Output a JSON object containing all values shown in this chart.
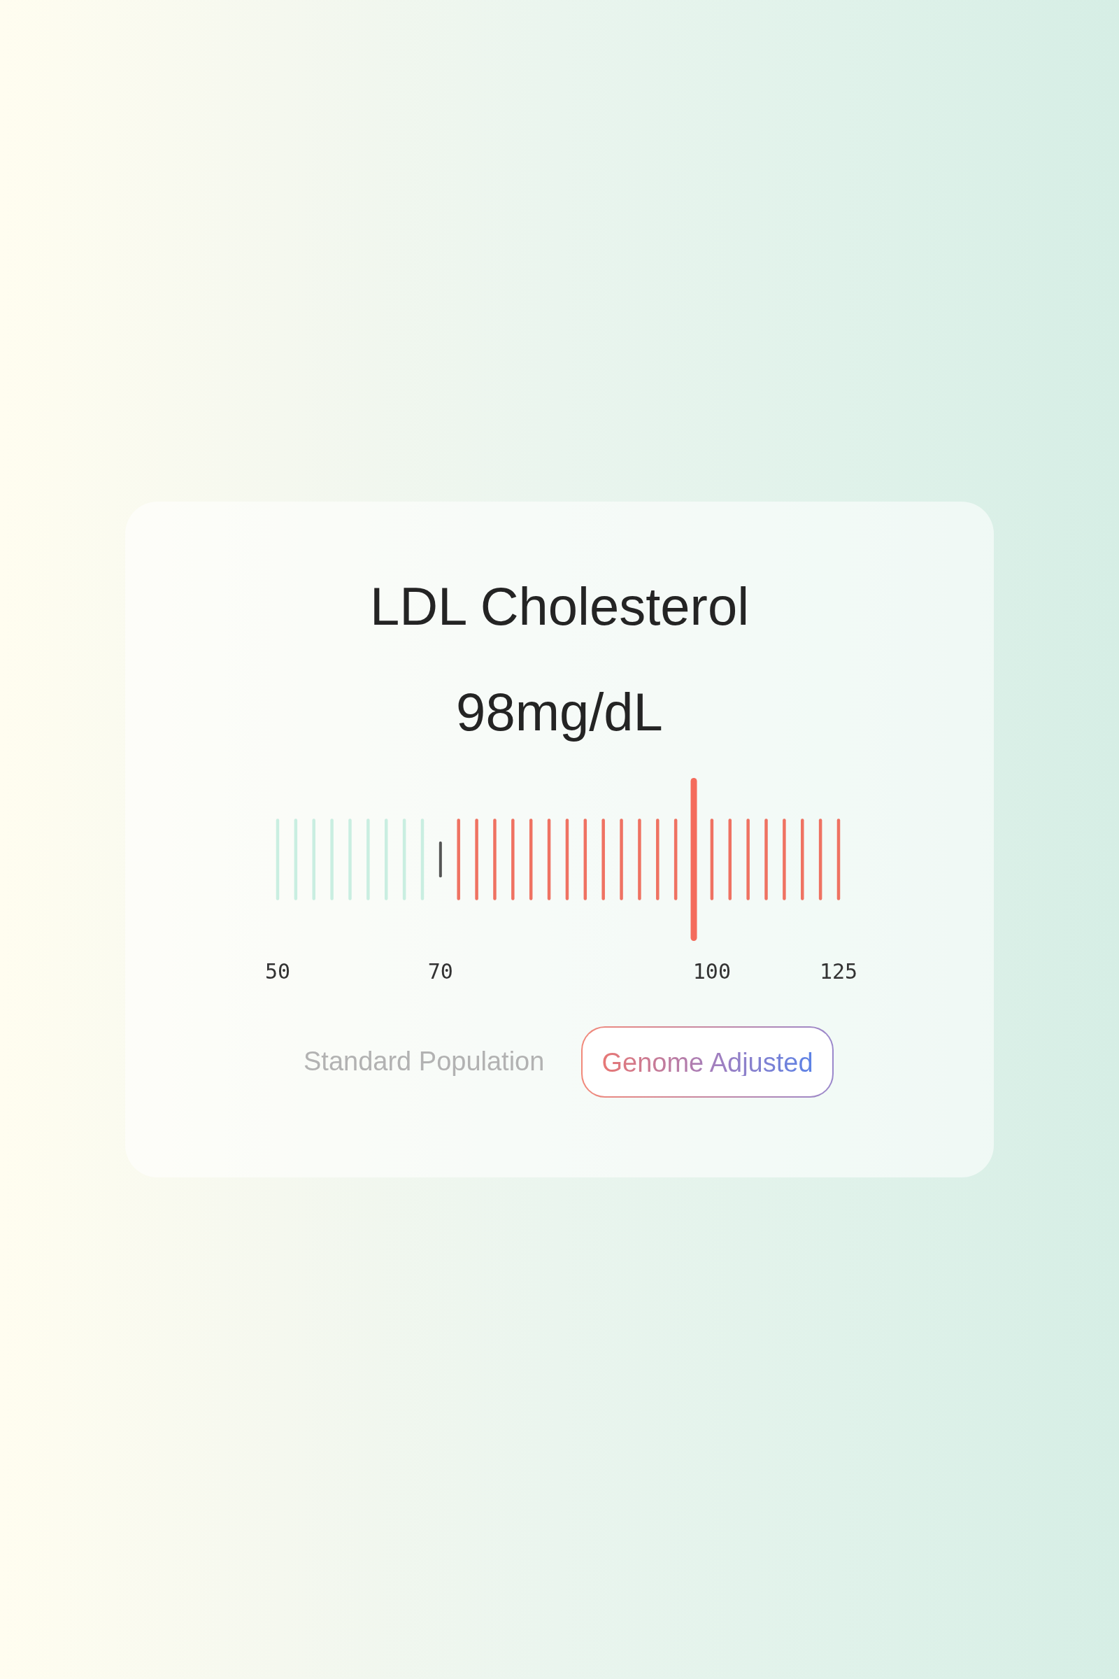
{
  "chart_data": {
    "type": "other",
    "title": "LDL Cholesterol",
    "categories": [
      "50",
      null,
      null,
      null,
      null,
      null,
      null,
      null,
      null,
      "70",
      null,
      null,
      null,
      null,
      null,
      null,
      null,
      null,
      null,
      null,
      null,
      null,
      null,
      null,
      "100",
      null,
      null,
      null,
      null,
      null,
      null,
      "125"
    ],
    "values": [
      null,
      null,
      null,
      null,
      null,
      null,
      null,
      null,
      null,
      null,
      null,
      null,
      null,
      null,
      null,
      null,
      null,
      null,
      null,
      null,
      null,
      null,
      null,
      98,
      null,
      null,
      null,
      null,
      null,
      null,
      null,
      null
    ],
    "value_labels": [
      null,
      null,
      null,
      null,
      null,
      null,
      null,
      null,
      null,
      null,
      null,
      null,
      null,
      null,
      null,
      null,
      null,
      null,
      null,
      null,
      null,
      null,
      null,
      "98mg/dL",
      null,
      null,
      null,
      null,
      null,
      null,
      null,
      null
    ],
    "colors": [
      "#c9eee1",
      "#c9eee1",
      "#c9eee1",
      "#c9eee1",
      "#c9eee1",
      "#c9eee1",
      "#c9eee1",
      "#c9eee1",
      "#c9eee1",
      "#555555",
      "#ef7262",
      "#ef7262",
      "#ef7262",
      "#ef7262",
      "#ef7262",
      "#ef7262",
      "#ef7262",
      "#ef7262",
      "#ef7262",
      "#ef7262",
      "#ef7262",
      "#ef7262",
      "#ef7262",
      "#f46b5c",
      "#ef7262",
      "#ef7262",
      "#ef7262",
      "#ef7262",
      "#ef7262",
      "#ef7262",
      "#ef7262",
      "#ef7262"
    ],
    "annotations": [
      "Standard Population",
      "Genome Adjusted"
    ]
  }
}
